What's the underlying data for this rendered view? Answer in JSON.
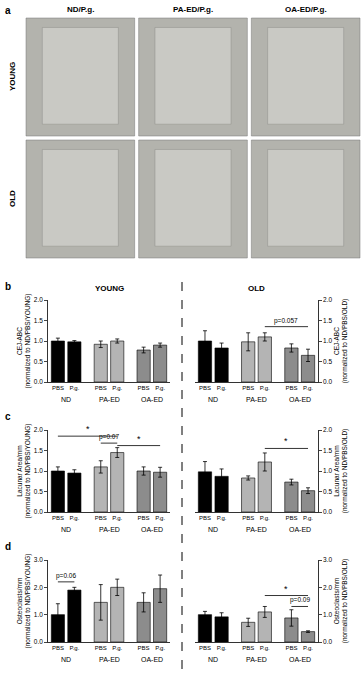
{
  "panel_a": {
    "label": "a",
    "columns": [
      "ND/P.g.",
      "PA-ED/P.g.",
      "OA-ED/P.g."
    ],
    "rows": [
      "YOUNG",
      "OLD"
    ]
  },
  "chart_data": [
    {
      "type": "bar",
      "panel": "b",
      "title": "YOUNG",
      "y_label": "CEJ-ABC\n(normalized to ND/PBS/YOUNG)",
      "categories": [
        "PBS",
        "P.g.",
        "PBS",
        "P.g.",
        "PBS",
        "P.g."
      ],
      "groups": [
        "ND",
        "ND",
        "PA-ED",
        "PA-ED",
        "OA-ED",
        "OA-ED"
      ],
      "colors": [
        "#000000",
        "#000000",
        "#b4b4b4",
        "#b4b4b4",
        "#8c8c8c",
        "#8c8c8c"
      ],
      "values": [
        1.0,
        0.98,
        0.92,
        1.0,
        0.78,
        0.9
      ],
      "errors": [
        0.07,
        0.03,
        0.08,
        0.05,
        0.07,
        0.05
      ],
      "ylim": [
        0,
        2
      ],
      "yticks": [
        {
          "value": 0,
          "label": "0.0"
        },
        {
          "value": 0.5,
          "label": "0.5"
        },
        {
          "value": 1,
          "label": "1.0"
        },
        {
          "value": 1.5,
          "label": "1.5"
        },
        {
          "value": 2,
          "label": "2.0"
        }
      ],
      "annotations": []
    },
    {
      "type": "bar",
      "title": "OLD",
      "y_label": "CEJ-ABC\n(normalized to ND/PBS/OLD)",
      "categories": [
        "PBS",
        "P.g.",
        "PBS",
        "P.g.",
        "PBS",
        "P.g."
      ],
      "groups": [
        "ND",
        "ND",
        "PA-ED",
        "PA-ED",
        "OA-ED",
        "OA-ED"
      ],
      "colors": [
        "#000000",
        "#000000",
        "#b4b4b4",
        "#b4b4b4",
        "#8c8c8c",
        "#8c8c8c"
      ],
      "values": [
        1.0,
        0.83,
        0.98,
        1.1,
        0.83,
        0.65
      ],
      "errors": [
        0.25,
        0.12,
        0.22,
        0.1,
        0.1,
        0.15
      ],
      "ylim": [
        0,
        2
      ],
      "yticks": [
        {
          "value": 0,
          "label": "0.0"
        },
        {
          "value": 0.5,
          "label": "0.5"
        },
        {
          "value": 1,
          "label": "1.0"
        },
        {
          "value": 1.5,
          "label": "1.5"
        },
        {
          "value": 2,
          "label": "2.0"
        }
      ],
      "annotations": [
        {
          "text": "p=0.057",
          "from": 3,
          "to": 5,
          "y": 1.35
        }
      ]
    },
    {
      "type": "bar",
      "panel": "c",
      "y_label": "Lacunar Area/mm\n(normalized to ND/PBS/YOUNG)",
      "categories": [
        "PBS",
        "P.g.",
        "PBS",
        "P.g.",
        "PBS",
        "P.g."
      ],
      "groups": [
        "ND",
        "ND",
        "PA-ED",
        "PA-ED",
        "OA-ED",
        "OA-ED"
      ],
      "colors": [
        "#000000",
        "#000000",
        "#b4b4b4",
        "#b4b4b4",
        "#8c8c8c",
        "#8c8c8c"
      ],
      "values": [
        1.0,
        0.95,
        1.1,
        1.45,
        1.0,
        0.97
      ],
      "errors": [
        0.1,
        0.08,
        0.15,
        0.12,
        0.1,
        0.12
      ],
      "ylim": [
        0,
        2
      ],
      "yticks": [
        {
          "value": 0,
          "label": "0.0"
        },
        {
          "value": 0.5,
          "label": "0.5"
        },
        {
          "value": 1,
          "label": "1.0"
        },
        {
          "value": 1.5,
          "label": "1.5"
        },
        {
          "value": 2,
          "label": "2.0"
        }
      ],
      "annotations": [
        {
          "text": "*",
          "from": 0,
          "to": 3,
          "y": 1.85
        },
        {
          "text": "p=0.07",
          "from": 2,
          "to": 3,
          "y": 1.68
        },
        {
          "text": "*",
          "from": 3,
          "to": 5,
          "y": 1.62
        }
      ]
    },
    {
      "type": "bar",
      "y_label": "Lacunar Area/mm\n(normalized to ND/PBS/OLD)",
      "categories": [
        "PBS",
        "P.g.",
        "PBS",
        "P.g.",
        "PBS",
        "P.g."
      ],
      "groups": [
        "ND",
        "ND",
        "PA-ED",
        "PA-ED",
        "OA-ED",
        "OA-ED"
      ],
      "colors": [
        "#000000",
        "#000000",
        "#b4b4b4",
        "#b4b4b4",
        "#8c8c8c",
        "#8c8c8c"
      ],
      "values": [
        0.98,
        0.87,
        0.83,
        1.22,
        0.73,
        0.52
      ],
      "errors": [
        0.25,
        0.18,
        0.05,
        0.22,
        0.07,
        0.07
      ],
      "ylim": [
        0,
        2
      ],
      "yticks": [
        {
          "value": 0,
          "label": "0.0"
        },
        {
          "value": 0.5,
          "label": "0.5"
        },
        {
          "value": 1,
          "label": "1.0"
        },
        {
          "value": 1.5,
          "label": "1.5"
        },
        {
          "value": 2,
          "label": "2.0"
        }
      ],
      "annotations": [
        {
          "text": "*",
          "from": 3,
          "to": 5,
          "y": 1.55
        }
      ]
    },
    {
      "type": "bar",
      "panel": "d",
      "y_label": "Osteoclasts/mm\n(normalized to ND/PBS/YOUNG)",
      "categories": [
        "PBS",
        "P.g.",
        "PBS",
        "P.g.",
        "PBS",
        "P.g."
      ],
      "groups": [
        "ND",
        "ND",
        "PA-ED",
        "PA-ED",
        "OA-ED",
        "OA-ED"
      ],
      "colors": [
        "#000000",
        "#000000",
        "#b4b4b4",
        "#b4b4b4",
        "#8c8c8c",
        "#8c8c8c"
      ],
      "values": [
        1.0,
        1.9,
        1.45,
        2.0,
        1.45,
        1.95
      ],
      "errors": [
        0.4,
        0.1,
        0.65,
        0.3,
        0.35,
        0.5
      ],
      "ylim": [
        0,
        3
      ],
      "yticks": [
        {
          "value": 0,
          "label": "0.0"
        },
        {
          "value": 1,
          "label": "1.0"
        },
        {
          "value": 2,
          "label": "2.0"
        },
        {
          "value": 3,
          "label": "3.0"
        }
      ],
      "annotations": [
        {
          "text": "p=0.06",
          "from": 0,
          "to": 1,
          "y": 2.2
        }
      ]
    },
    {
      "type": "bar",
      "y_label": "Osteoclasts/mm\n(normalized to ND/PBS/OLD)",
      "categories": [
        "PBS",
        "P.g.",
        "PBS",
        "P.g.",
        "PBS",
        "P.g."
      ],
      "groups": [
        "ND",
        "ND",
        "PA-ED",
        "PA-ED",
        "OA-ED",
        "OA-ED"
      ],
      "colors": [
        "#000000",
        "#000000",
        "#b4b4b4",
        "#b4b4b4",
        "#8c8c8c",
        "#8c8c8c"
      ],
      "values": [
        1.0,
        0.92,
        0.72,
        1.1,
        0.88,
        0.38
      ],
      "errors": [
        0.12,
        0.15,
        0.15,
        0.2,
        0.3,
        0.03
      ],
      "ylim": [
        0,
        3
      ],
      "yticks": [
        {
          "value": 0,
          "label": "0.0"
        },
        {
          "value": 1,
          "label": "1.0"
        },
        {
          "value": 2,
          "label": "2.0"
        },
        {
          "value": 3,
          "label": "3.0"
        }
      ],
      "annotations": [
        {
          "text": "*",
          "from": 3,
          "to": 5,
          "y": 1.7
        },
        {
          "text": "p=0.09",
          "from": 4,
          "to": 5,
          "y": 1.3
        }
      ]
    }
  ]
}
